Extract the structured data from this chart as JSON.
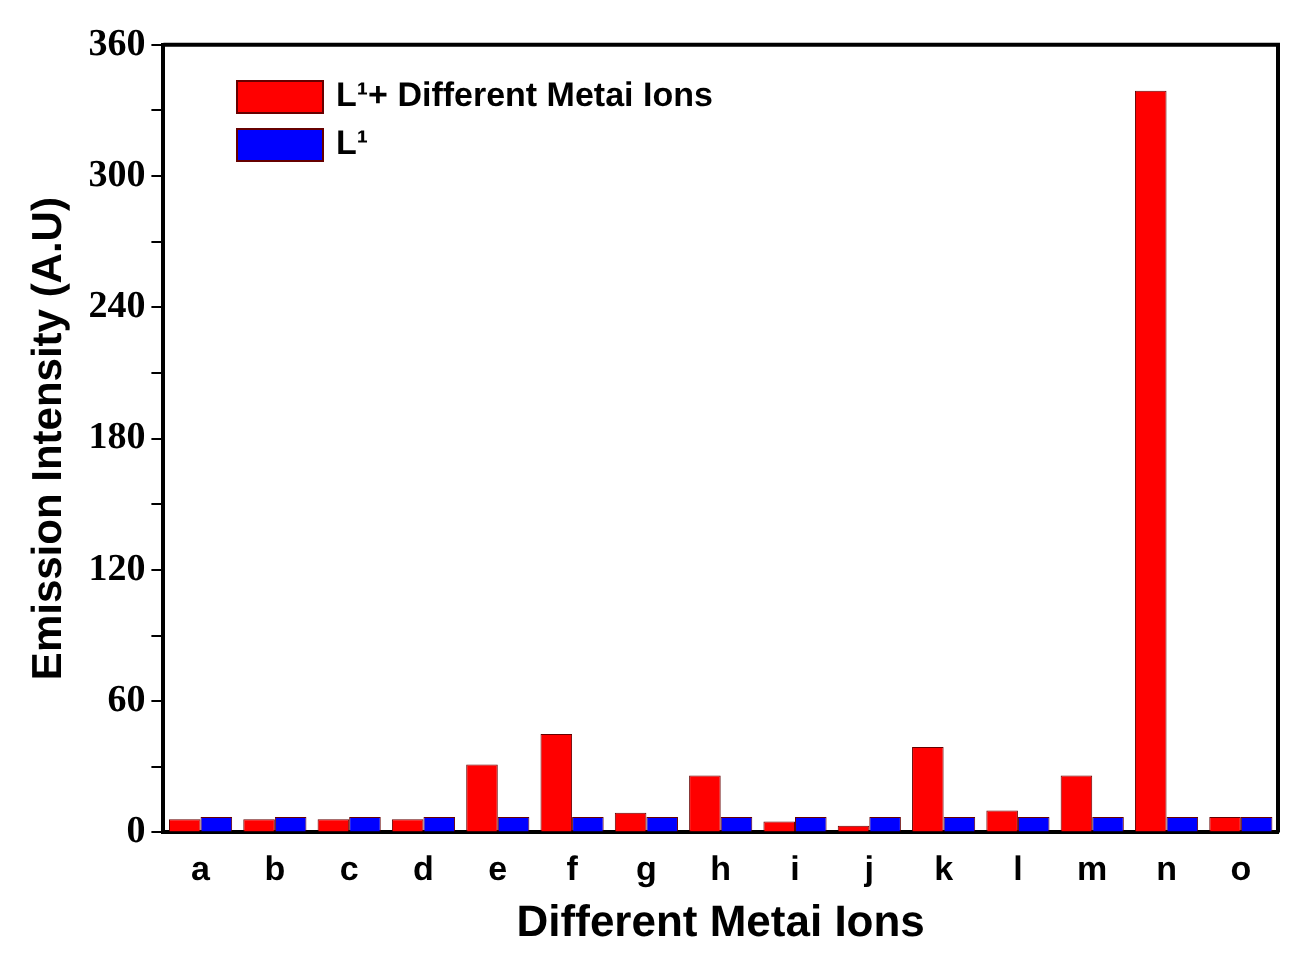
{
  "chart_data": {
    "type": "bar",
    "xlabel": "Different Metai Ions",
    "ylabel": "Emission Intensity (A.U)",
    "categories": [
      "a",
      "b",
      "c",
      "d",
      "e",
      "f",
      "g",
      "h",
      "i",
      "j",
      "k",
      "l",
      "m",
      "n",
      "o"
    ],
    "series": [
      {
        "name": "L¹+ Different Metai Ions",
        "color": "#ff0000",
        "values": [
          6,
          6,
          6,
          6,
          31,
          45,
          9,
          26,
          5,
          3,
          39,
          10,
          26,
          339,
          7
        ]
      },
      {
        "name": "L¹",
        "color": "#0000ff",
        "values": [
          7,
          7,
          7,
          7,
          7,
          7,
          7,
          7,
          7,
          7,
          7,
          7,
          7,
          7,
          7
        ]
      }
    ],
    "ylim": [
      0,
      360
    ],
    "yticks": [
      0,
      {
        "value": 30,
        "label": null
      },
      60,
      {
        "value": 90,
        "label": null
      },
      120,
      {
        "value": 150,
        "label": null
      },
      180,
      {
        "value": 210,
        "label": null
      },
      240,
      {
        "value": 270,
        "label": null
      },
      300,
      {
        "value": 330,
        "label": null
      },
      360
    ],
    "grid": false,
    "legend": "top left"
  }
}
